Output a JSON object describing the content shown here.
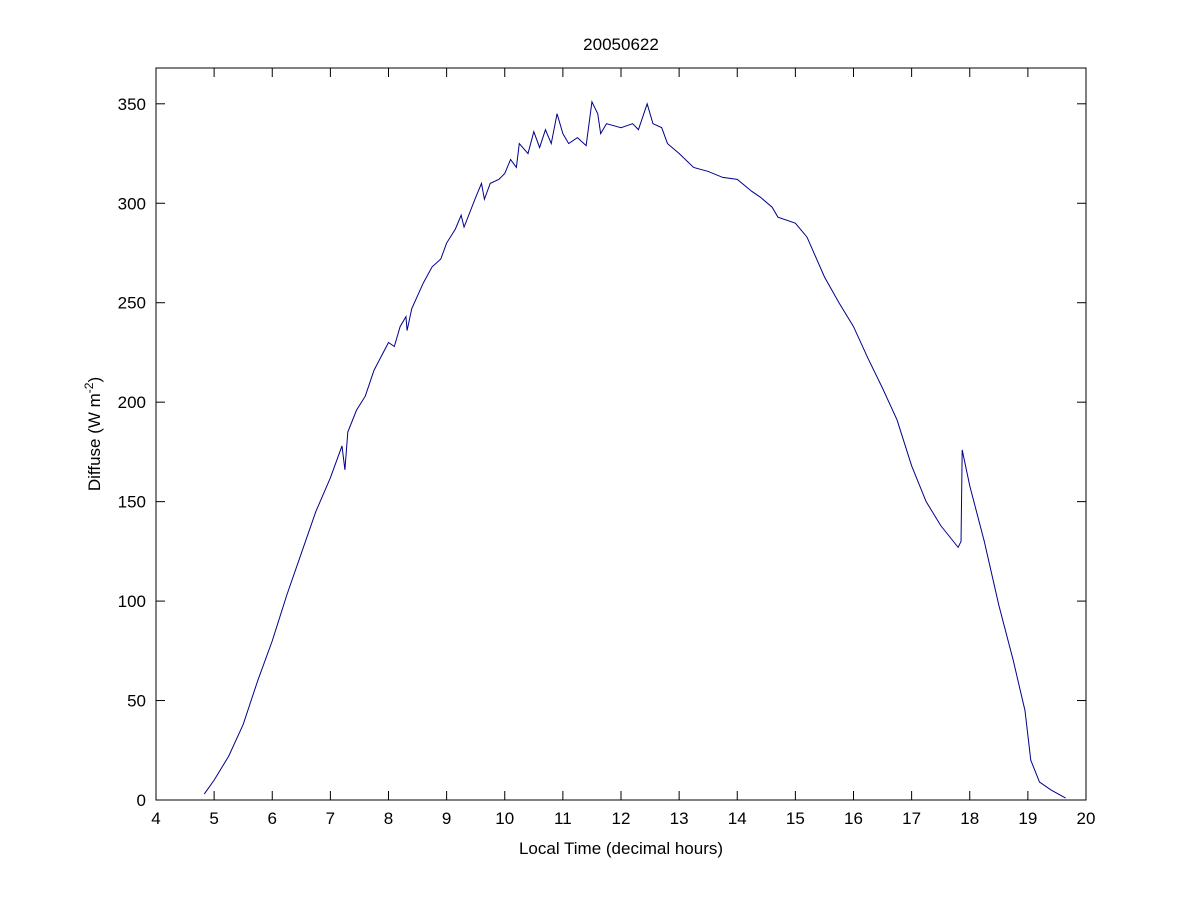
{
  "chart_data": {
    "type": "line",
    "title": "20050622",
    "xlabel": "Local Time (decimal hours)",
    "ylabel": "Diffuse (W m",
    "ylabel_sup": "-2",
    "ylabel_end": ")",
    "x": [
      4.83,
      5.0,
      5.25,
      5.5,
      5.75,
      6.0,
      6.25,
      6.5,
      6.75,
      7.0,
      7.2,
      7.25,
      7.3,
      7.45,
      7.6,
      7.75,
      8.0,
      8.1,
      8.2,
      8.3,
      8.32,
      8.4,
      8.6,
      8.75,
      8.9,
      9.0,
      9.15,
      9.25,
      9.3,
      9.5,
      9.6,
      9.65,
      9.75,
      9.9,
      10.0,
      10.1,
      10.2,
      10.25,
      10.4,
      10.5,
      10.6,
      10.7,
      10.8,
      10.9,
      11.0,
      11.1,
      11.25,
      11.4,
      11.5,
      11.6,
      11.65,
      11.75,
      12.0,
      12.2,
      12.3,
      12.45,
      12.55,
      12.7,
      12.8,
      13.0,
      13.25,
      13.5,
      13.75,
      14.0,
      14.25,
      14.4,
      14.6,
      14.7,
      15.0,
      15.2,
      15.5,
      15.75,
      16.0,
      16.25,
      16.5,
      16.75,
      17.0,
      17.25,
      17.5,
      17.8,
      17.85,
      17.87,
      18.0,
      18.25,
      18.5,
      18.75,
      18.95,
      19.05,
      19.2,
      19.4,
      19.65
    ],
    "series": [
      {
        "name": "Diffuse",
        "color": "#00008b",
        "values": [
          3,
          10,
          22,
          38,
          60,
          80,
          103,
          124,
          145,
          162,
          178,
          166,
          185,
          196,
          203,
          216,
          230,
          228,
          238,
          243,
          236,
          247,
          260,
          268,
          272,
          280,
          287,
          294,
          288,
          303,
          310,
          302,
          310,
          312,
          315,
          322,
          318,
          330,
          325,
          336,
          328,
          337,
          330,
          345,
          335,
          330,
          333,
          329,
          351,
          345,
          335,
          340,
          338,
          340,
          337,
          350,
          340,
          338,
          330,
          325,
          318,
          316,
          313,
          312,
          306,
          303,
          298,
          293,
          290,
          283,
          263,
          250,
          238,
          222,
          207,
          191,
          168,
          150,
          138,
          127,
          130,
          176,
          158,
          130,
          98,
          70,
          45,
          20,
          9,
          5,
          1
        ]
      }
    ],
    "xlim": [
      4,
      20
    ],
    "xticks": [
      4,
      5,
      6,
      7,
      8,
      9,
      10,
      11,
      12,
      13,
      14,
      15,
      16,
      17,
      18,
      19,
      20
    ],
    "ylim": [
      0,
      368
    ],
    "yticks": [
      0,
      50,
      100,
      150,
      200,
      250,
      300,
      350
    ],
    "grid": false
  }
}
